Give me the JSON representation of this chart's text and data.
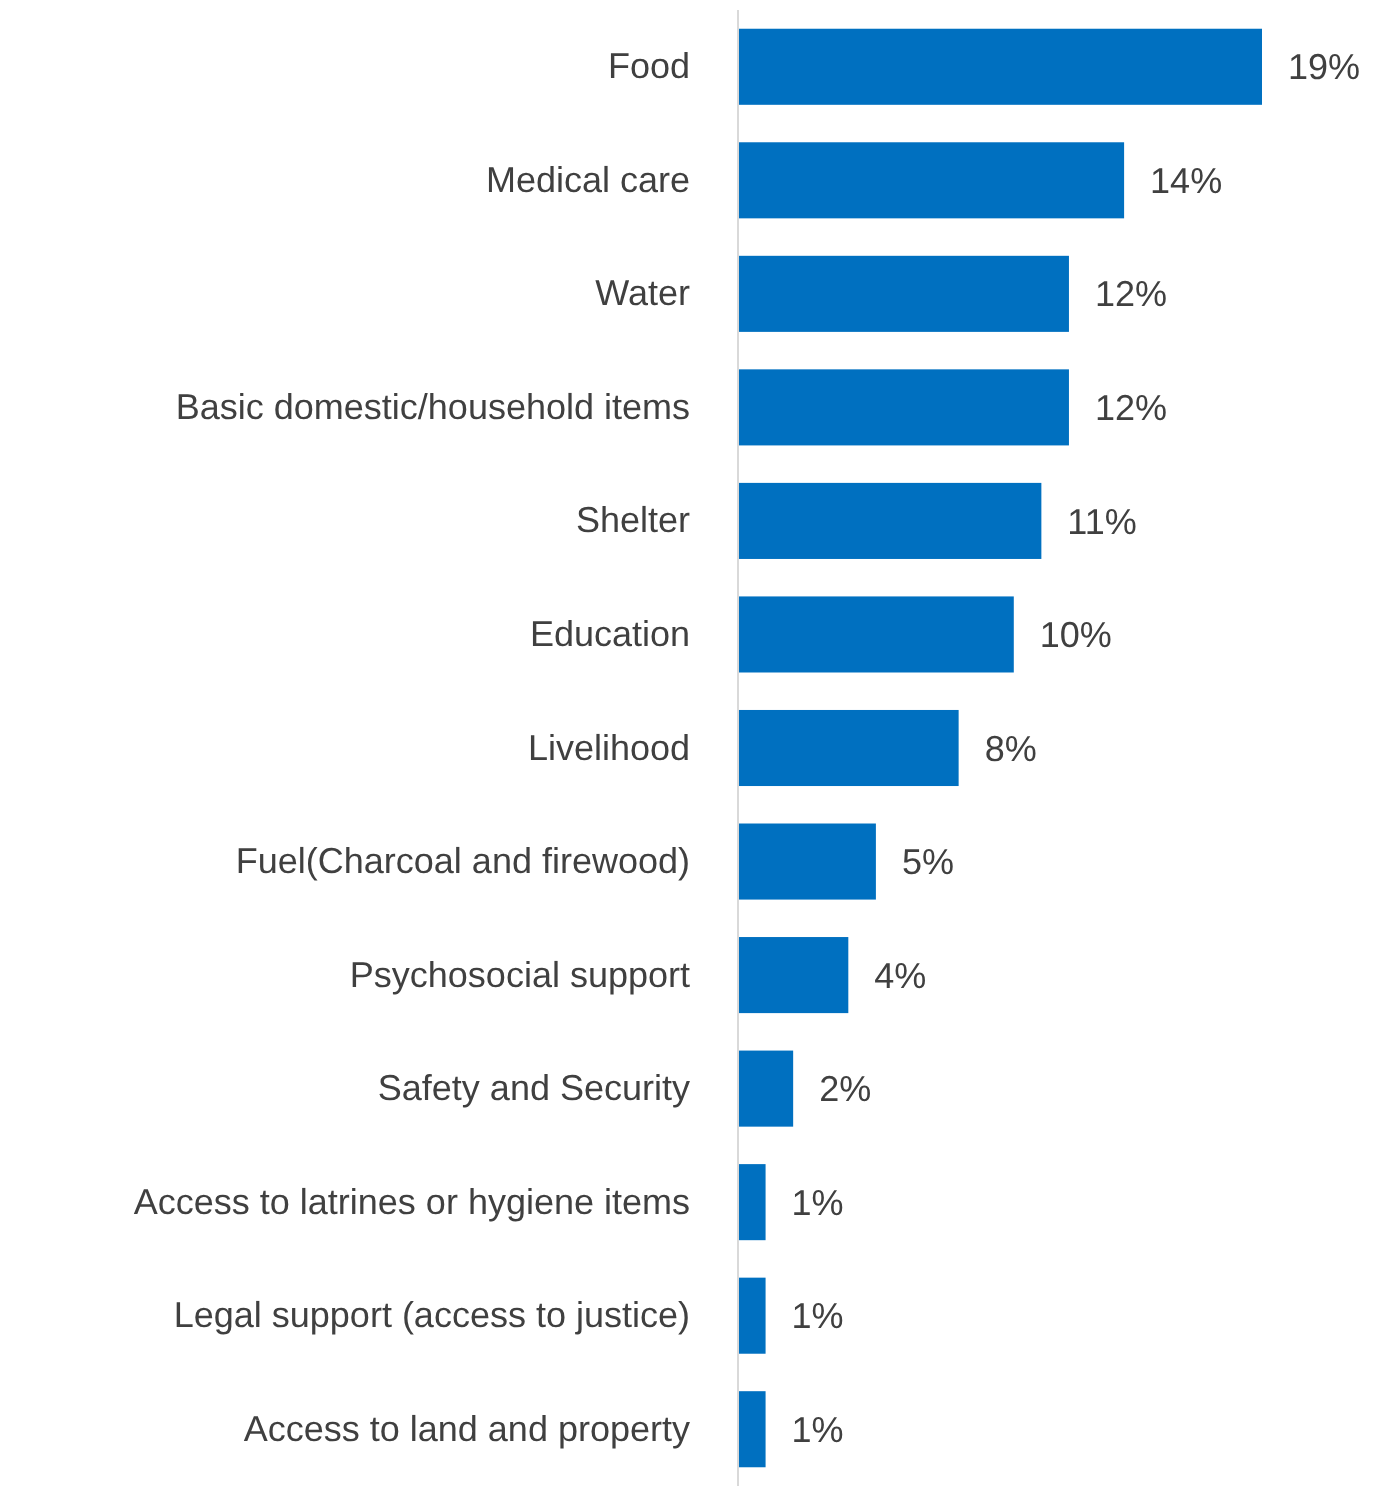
{
  "chart_data": {
    "type": "bar",
    "orientation": "horizontal",
    "categories": [
      "Food",
      "Medical care",
      "Water",
      "Basic domestic/household items",
      "Shelter",
      "Education",
      "Livelihood",
      "Fuel(Charcoal and firewood)",
      "Psychosocial support",
      "Safety and Security",
      "Access to latrines or hygiene items",
      "Legal support (access to justice)",
      "Access to land and property"
    ],
    "values": [
      19,
      14,
      12,
      12,
      11,
      10,
      8,
      5,
      4,
      2,
      1,
      1,
      1
    ],
    "value_labels": [
      "19%",
      "14%",
      "12%",
      "12%",
      "11%",
      "10%",
      "8%",
      "5%",
      "4%",
      "2%",
      "1%",
      "1%",
      "1%"
    ],
    "color": "#0070c0"
  }
}
